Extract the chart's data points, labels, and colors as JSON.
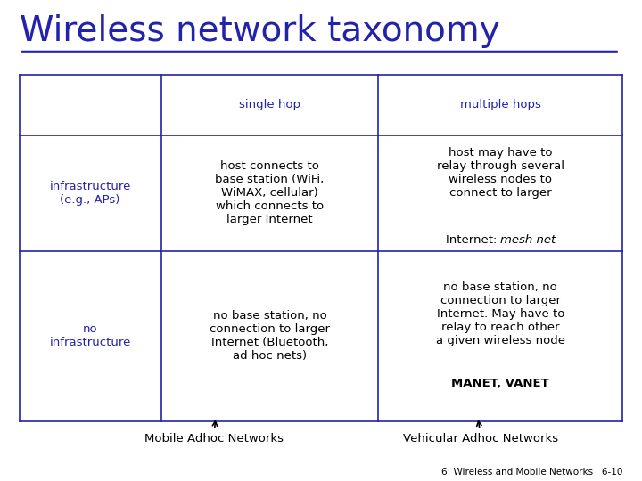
{
  "title": "Wireless network taxonomy",
  "title_color": "#2222AA",
  "title_fontsize": 28,
  "bg_color": "#FFFFFF",
  "table_color": "#2222AA",
  "text_color": "#000000",
  "blue_text_color": "#2222AA",
  "col_headers": [
    "single hop",
    "multiple hops"
  ],
  "row_headers": [
    "infrastructure\n(e.g., APs)",
    "no\ninfrastructure"
  ],
  "cell_texts": [
    [
      "host connects to\nbase station (WiFi,\nWiMAX, cellular)\nwhich connects to\nlarger Internet",
      "host may have to\nrelay through several\nwireless nodes to\nconnect to larger\nInternet: mesh net"
    ],
    [
      "no base station, no\nconnection to larger\nInternet (Bluetooth,\nad hoc nets)",
      "no base station, no\nconnection to larger\nInternet. May have to\nrelay to reach other\na given wireless node\nMANET, VANET"
    ]
  ],
  "annotation_left": "Mobile Adhoc Networks",
  "annotation_right": "Vehicular Adhoc Networks",
  "footer": "6: Wireless and Mobile Networks   6-10",
  "font_family": "Comic Sans MS"
}
